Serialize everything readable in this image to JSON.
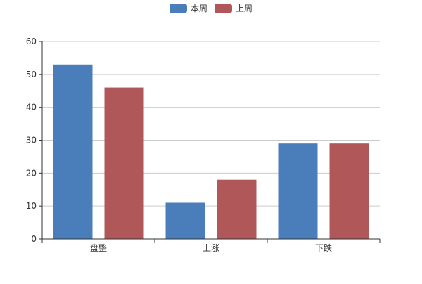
{
  "chart_data": {
    "type": "bar",
    "title": "",
    "xlabel": "",
    "ylabel": "",
    "categories": [
      "盘整",
      "上涨",
      "下跌"
    ],
    "series": [
      {
        "name": "本周",
        "values": [
          53,
          11,
          29
        ],
        "color": "#4a7ebb"
      },
      {
        "name": "上周",
        "values": [
          46,
          18,
          29
        ],
        "color": "#b0575a"
      }
    ],
    "ylim": [
      0,
      60
    ],
    "yticks": [
      0,
      10,
      20,
      30,
      40,
      50,
      60
    ],
    "grid": true,
    "legend_position": "top-center"
  }
}
